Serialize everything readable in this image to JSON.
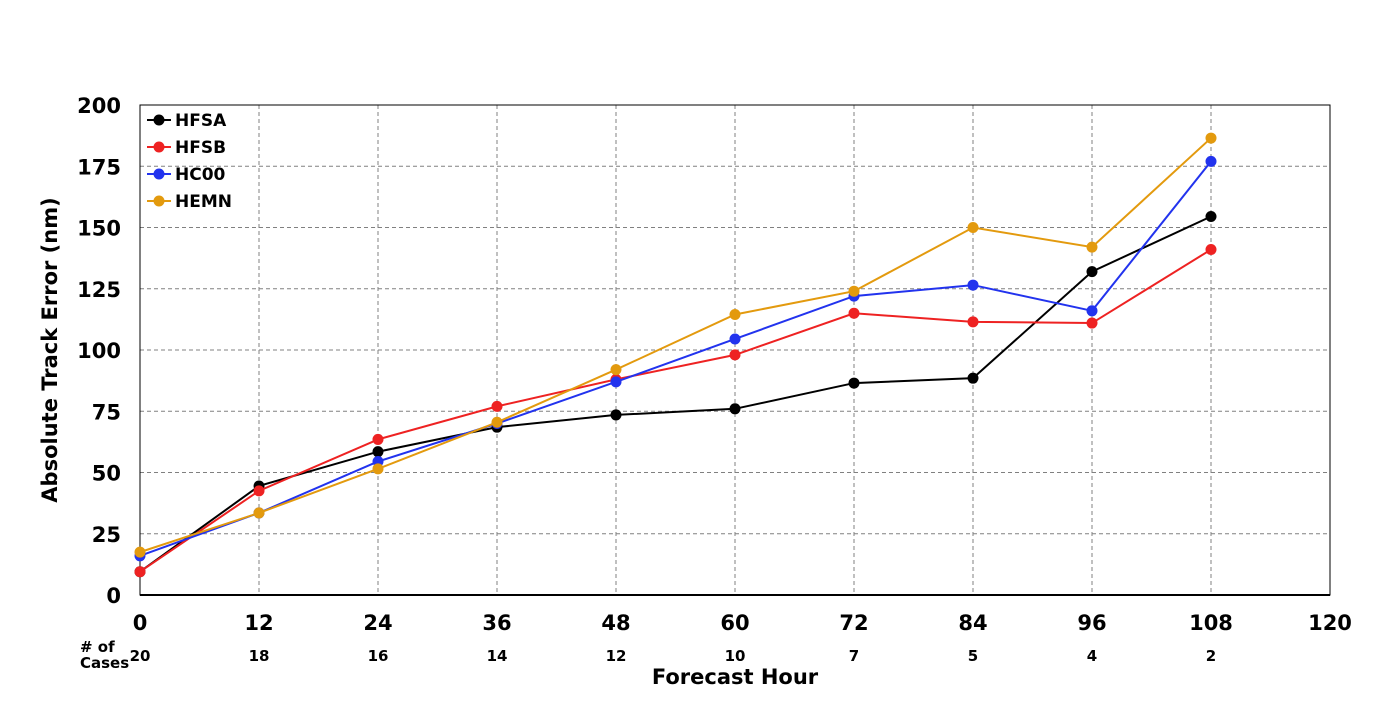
{
  "chart_data": {
    "type": "line",
    "xlabel": "Forecast Hour",
    "ylabel": "Absolute Track Error (nm)",
    "xlim": [
      0,
      120
    ],
    "ylim": [
      0,
      200
    ],
    "x_ticks": [
      "0",
      "12",
      "24",
      "36",
      "48",
      "60",
      "72",
      "84",
      "96",
      "108",
      "120"
    ],
    "y_ticks": [
      "0",
      "25",
      "50",
      "75",
      "100",
      "125",
      "150",
      "175",
      "200"
    ],
    "grid": true,
    "legend_position": "top-left",
    "cases_label_line1": "# of",
    "cases_label_line2": "Cases",
    "x": [
      0,
      12,
      24,
      36,
      48,
      60,
      72,
      84,
      96,
      108
    ],
    "cases": [
      "20",
      "18",
      "16",
      "14",
      "12",
      "10",
      "7",
      "5",
      "4",
      "2"
    ],
    "series": [
      {
        "name": "HFSA",
        "color": "#000000",
        "values": [
          9.5,
          44.5,
          58.5,
          68.5,
          73.5,
          76,
          86.5,
          88.5,
          132,
          154.5
        ]
      },
      {
        "name": "HFSB",
        "color": "#ee2222",
        "values": [
          9.5,
          42.5,
          63.5,
          77,
          88,
          98,
          115,
          111.5,
          111,
          141
        ]
      },
      {
        "name": "HC00",
        "color": "#2233ee",
        "values": [
          16,
          33.5,
          54.5,
          70,
          87,
          104.5,
          122,
          126.5,
          116,
          177
        ]
      },
      {
        "name": "HEMN",
        "color": "#e39a0e",
        "values": [
          17.5,
          33.5,
          51.5,
          70.5,
          92,
          114.5,
          124,
          150,
          142,
          186.5
        ]
      }
    ]
  }
}
